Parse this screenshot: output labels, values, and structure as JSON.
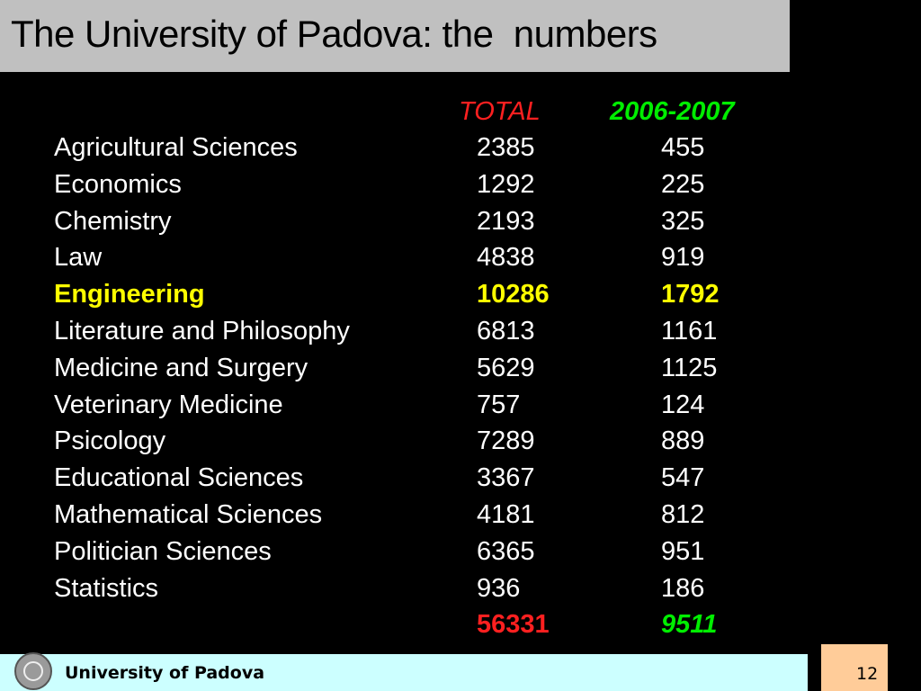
{
  "header": {
    "title": "The University of Padova: the  numbers"
  },
  "table": {
    "columns": [
      "TOTAL",
      "2006-2007"
    ],
    "rows": [
      [
        "Agricultural Sciences",
        2385,
        455
      ],
      [
        "Economics",
        1292,
        225
      ],
      [
        "Chemistry",
        2193,
        325
      ],
      [
        "Law",
        4838,
        919
      ],
      [
        "Engineering",
        10286,
        1792
      ],
      [
        "Literature and Philosophy",
        6813,
        1161
      ],
      [
        "Medicine and Surgery",
        5629,
        1125
      ],
      [
        "Veterinary Medicine",
        757,
        124
      ],
      [
        "Psicology",
        7289,
        889
      ],
      [
        "Educational Sciences",
        3367,
        547
      ],
      [
        "Mathematical Sciences",
        4181,
        812
      ],
      [
        "Politician Sciences",
        6365,
        951
      ],
      [
        "Statistics",
        936,
        186
      ]
    ],
    "totals": [
      56331,
      9511
    ]
  },
  "footer": {
    "text": "University of Padova",
    "page": "12"
  }
}
